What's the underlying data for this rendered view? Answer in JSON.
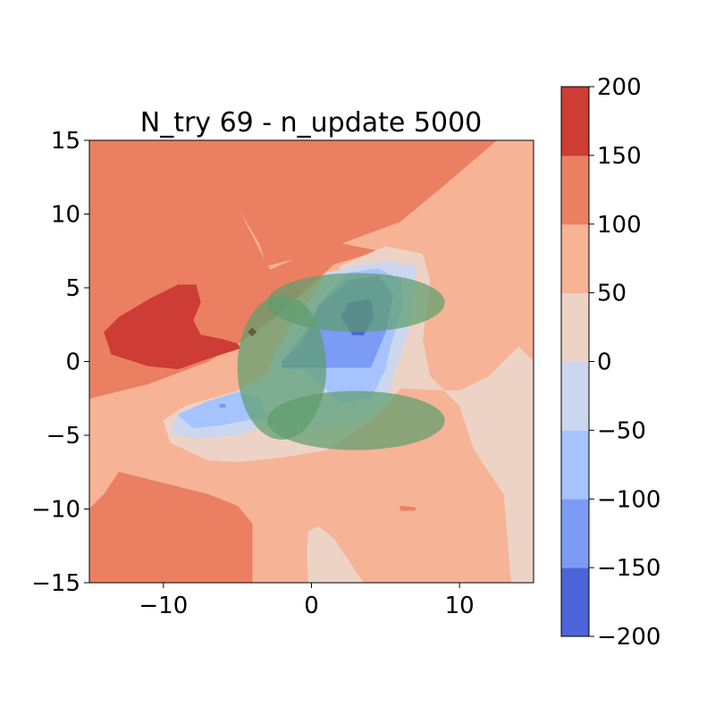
{
  "chart_data": {
    "type": "contourf",
    "title": "N_try 69 - n_update 5000",
    "xlabel": "",
    "ylabel": "",
    "xlim": [
      -15,
      15
    ],
    "ylim": [
      -15,
      15
    ],
    "x_ticks": [
      -10,
      0,
      10
    ],
    "y_ticks": [
      -15,
      -10,
      -5,
      0,
      5,
      10,
      15
    ],
    "x_tick_labels": [
      "−10",
      "0",
      "10"
    ],
    "y_tick_labels": [
      "−15",
      "−10",
      "−5",
      "0",
      "5",
      "10",
      "15"
    ],
    "grid": false,
    "colormap": "coolwarm",
    "colorbar": {
      "levels": [
        -200,
        -150,
        -100,
        -50,
        0,
        50,
        100,
        150,
        200
      ],
      "tick_labels": [
        "−200",
        "−150",
        "−100",
        "−50",
        "0",
        "50",
        "100",
        "150",
        "200"
      ],
      "colors": [
        "#4d63d9",
        "#7b9bf5",
        "#a6c3fd",
        "#cbd7ee",
        "#ecd3c5",
        "#f6b396",
        "#eb7f62",
        "#cd3c35"
      ],
      "location": "right"
    },
    "background_level_color": "#f6b396",
    "regions": [
      {
        "name": "upper-right-100-150",
        "color": "#eb7f62",
        "points": [
          [
            1,
            15
          ],
          [
            12.5,
            15
          ],
          [
            9,
            12
          ],
          [
            6,
            9.5
          ],
          [
            2,
            8
          ],
          [
            -1,
            7
          ],
          [
            -3,
            6.5
          ],
          [
            -3.5,
            8
          ],
          [
            -5,
            10.5
          ],
          [
            -6,
            13
          ],
          [
            -6,
            15
          ]
        ]
      },
      {
        "name": "upper-left-100-150",
        "color": "#eb7f62",
        "points": [
          [
            -15,
            15
          ],
          [
            -6,
            15
          ],
          [
            -6,
            13
          ],
          [
            -5,
            10.5
          ],
          [
            -3.5,
            7.5
          ],
          [
            -2.8,
            6.2
          ],
          [
            -1,
            7
          ],
          [
            2,
            8
          ],
          [
            4.5,
            7.5
          ],
          [
            1.5,
            6.6
          ],
          [
            -1,
            4.3
          ],
          [
            -2.5,
            3
          ],
          [
            -4.5,
            1.5
          ],
          [
            -7,
            0
          ],
          [
            -11,
            -1.5
          ],
          [
            -15,
            -2.5
          ]
        ]
      },
      {
        "name": "upper-left-150-200",
        "color": "#cd3c35",
        "points": [
          [
            -14,
            2
          ],
          [
            -13,
            3
          ],
          [
            -11,
            4.2
          ],
          [
            -9,
            5.2
          ],
          [
            -7.8,
            5.2
          ],
          [
            -7.5,
            4
          ],
          [
            -8,
            2.8
          ],
          [
            -7.5,
            1.8
          ],
          [
            -6,
            1.5
          ],
          [
            -5,
            1.2
          ],
          [
            -4.8,
            0.9
          ],
          [
            -7,
            0.2
          ],
          [
            -9,
            -0.5
          ],
          [
            -11,
            -0.3
          ],
          [
            -13.5,
            0.5
          ]
        ]
      },
      {
        "name": "bottom-left-100-150",
        "color": "#eb7f62",
        "points": [
          [
            -15,
            -15
          ],
          [
            -4,
            -15
          ],
          [
            -4,
            -11
          ],
          [
            -5,
            -9.8
          ],
          [
            -7,
            -9
          ],
          [
            -11,
            -8
          ],
          [
            -13,
            -7.5
          ],
          [
            -14,
            -9
          ],
          [
            -15,
            -10
          ]
        ]
      },
      {
        "name": "small-spot-100-150",
        "color": "#eb7f62",
        "points": [
          [
            6,
            -9.8
          ],
          [
            7,
            -9.9
          ],
          [
            7,
            -10.1
          ],
          [
            6,
            -10.1
          ]
        ]
      },
      {
        "name": "right-0-50",
        "color": "#ecd3c5",
        "points": [
          [
            15,
            0
          ],
          [
            14,
            1
          ],
          [
            12,
            -1
          ],
          [
            10,
            -2
          ],
          [
            6,
            -1.8
          ],
          [
            5,
            -3
          ],
          [
            4,
            -4
          ],
          [
            1,
            -6
          ],
          [
            -2,
            -6.5
          ],
          [
            -5,
            -6.8
          ],
          [
            -7,
            -6.7
          ],
          [
            -9.5,
            -5.5
          ],
          [
            -10,
            -4
          ],
          [
            -8.5,
            -3
          ],
          [
            -5,
            -2
          ],
          [
            -2.5,
            -0.5
          ],
          [
            -0.5,
            1.8
          ],
          [
            0.5,
            4
          ],
          [
            2,
            6.5
          ],
          [
            5,
            7.8
          ],
          [
            7.5,
            7.3
          ],
          [
            8,
            5.5
          ],
          [
            7.5,
            1.5
          ],
          [
            8,
            -1
          ],
          [
            10,
            -3
          ],
          [
            11,
            -6
          ],
          [
            13,
            -9
          ],
          [
            13.5,
            -15
          ],
          [
            15,
            -15
          ]
        ]
      },
      {
        "name": "bottom-middle-0-50",
        "color": "#ecd3c5",
        "points": [
          [
            -0.2,
            -15
          ],
          [
            3.5,
            -15
          ],
          [
            2.5,
            -13.5
          ],
          [
            1.5,
            -12
          ],
          [
            0.5,
            -11.2
          ],
          [
            -0.2,
            -11.5
          ],
          [
            -0.3,
            -13
          ]
        ]
      },
      {
        "name": "blue-minus50-0",
        "color": "#cbd7ee",
        "points": [
          [
            -2.5,
            0.5
          ],
          [
            -1,
            3
          ],
          [
            0,
            4.3
          ],
          [
            1,
            6
          ],
          [
            3,
            6.5
          ],
          [
            5,
            6.8
          ],
          [
            7,
            6.5
          ],
          [
            7,
            5
          ],
          [
            6.5,
            2
          ],
          [
            5.5,
            -1
          ],
          [
            5,
            -3
          ],
          [
            3,
            -4.2
          ],
          [
            0,
            -4.3
          ],
          [
            -3,
            -4.3
          ],
          [
            -5,
            -5
          ],
          [
            -8,
            -5.2
          ],
          [
            -9.5,
            -4.8
          ],
          [
            -9,
            -3.5
          ],
          [
            -7,
            -2.8
          ],
          [
            -5,
            -2
          ],
          [
            -3,
            -1
          ]
        ]
      },
      {
        "name": "blue-minus100-minus50-right",
        "color": "#a6c3fd",
        "points": [
          [
            0,
            2.5
          ],
          [
            1,
            4.5
          ],
          [
            2.5,
            6
          ],
          [
            4.5,
            6.3
          ],
          [
            6,
            5.5
          ],
          [
            6.2,
            3.8
          ],
          [
            5.3,
            1
          ],
          [
            5,
            -0.5
          ],
          [
            4,
            -2.5
          ],
          [
            2,
            -2.8
          ],
          [
            -0.5,
            -0.5
          ],
          [
            -1.5,
            -0.5
          ],
          [
            -1.5,
            0.8
          ]
        ]
      },
      {
        "name": "blue-minus100-minus50-left",
        "color": "#a6c3fd",
        "points": [
          [
            -9,
            -3.6
          ],
          [
            -7,
            -2.7
          ],
          [
            -5,
            -2.1
          ],
          [
            -3.5,
            -2.5
          ],
          [
            -3,
            -3.8
          ],
          [
            -4.5,
            -4
          ],
          [
            -6,
            -4.3
          ],
          [
            -8,
            -4.5
          ]
        ]
      },
      {
        "name": "blue-minus150-minus100",
        "color": "#7b9bf5",
        "points": [
          [
            -2,
            0
          ],
          [
            -0.5,
            1.5
          ],
          [
            0.5,
            3.8
          ],
          [
            2.5,
            5.5
          ],
          [
            4.5,
            5.8
          ],
          [
            5.5,
            4.5
          ],
          [
            5,
            2
          ],
          [
            4,
            -0.4
          ],
          [
            2.5,
            -0.4
          ],
          [
            0,
            -0.4
          ],
          [
            -2,
            -0.4
          ]
        ]
      },
      {
        "name": "blue-minus200-minus150",
        "color": "#4d63d9",
        "points": [
          [
            2,
            3
          ],
          [
            2.5,
            4
          ],
          [
            4,
            4.2
          ],
          [
            4.2,
            3
          ],
          [
            3.5,
            1.8
          ],
          [
            2.8,
            1.8
          ]
        ]
      },
      {
        "name": "small-mark-left-minus150",
        "color": "#7b9bf5",
        "points": [
          [
            -6.2,
            -3.1
          ],
          [
            -5.8,
            -3.1
          ],
          [
            -5.8,
            -2.9
          ],
          [
            -6.2,
            -2.9
          ]
        ]
      }
    ],
    "ellipses": [
      {
        "cx": 3,
        "cy": 4,
        "rx": 6,
        "ry": 2,
        "color": "#5e9e6e",
        "opacity": 0.72
      },
      {
        "cx": -2,
        "cy": -0.4,
        "rx": 3,
        "ry": 4.9,
        "color": "#5e9e6e",
        "opacity": 0.72
      },
      {
        "cx": 3,
        "cy": -4,
        "rx": 6,
        "ry": 2,
        "color": "#5e9e6e",
        "opacity": 0.72
      }
    ],
    "markers": [
      {
        "x": -4,
        "y": 2,
        "color": "#6a5a3a"
      }
    ]
  }
}
